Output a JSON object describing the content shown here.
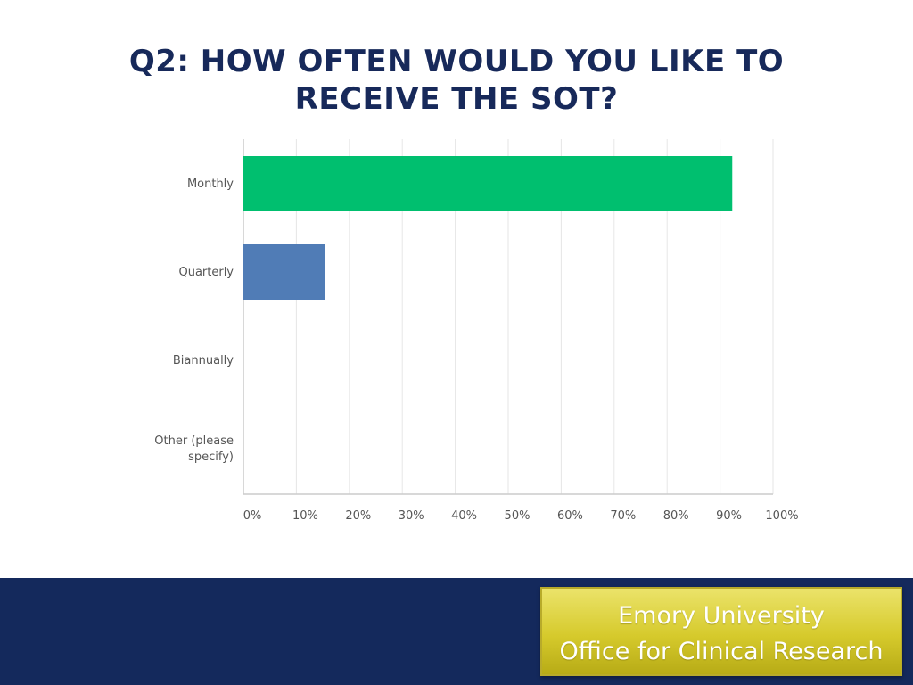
{
  "title": {
    "line1": "Q2: HOW OFTEN WOULD YOU LIKE TO",
    "line2": "RECEIVE THE SOT?"
  },
  "footer": {
    "line1": "Emory University",
    "line2": "Office for Clinical Research"
  },
  "colors": {
    "title": "#17295a",
    "footer_band": "#14295c",
    "badge": "#d6ca2c",
    "monthly_bar": "#00bf6f",
    "quarterly_bar": "#507cb6",
    "grid": "#e6e6e6",
    "axis": "#cccccc"
  },
  "chart_data": {
    "type": "bar",
    "orientation": "horizontal",
    "title": "",
    "xlabel": "",
    "ylabel": "",
    "categories": [
      "Monthly",
      "Quarterly",
      "Biannually",
      "Other (please specify)"
    ],
    "category_lines": [
      [
        "Monthly"
      ],
      [
        "Quarterly"
      ],
      [
        "Biannually"
      ],
      [
        "Other (please",
        "specify)"
      ]
    ],
    "values": [
      92.3,
      15.4,
      0,
      0
    ],
    "bar_colors": [
      "#00bf6f",
      "#507cb6",
      "#507cb6",
      "#507cb6"
    ],
    "xlim": [
      0,
      100
    ],
    "x_ticks": [
      "0%",
      "10%",
      "20%",
      "30%",
      "40%",
      "50%",
      "60%",
      "70%",
      "80%",
      "90%",
      "100%"
    ],
    "grid": true,
    "legend": "none"
  }
}
